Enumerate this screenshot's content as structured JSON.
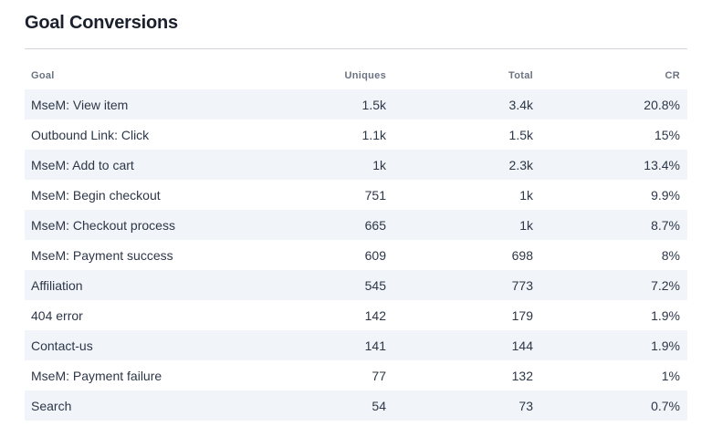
{
  "title": "Goal Conversions",
  "columns": {
    "goal": "Goal",
    "uniques": "Uniques",
    "total": "Total",
    "cr": "CR"
  },
  "rows": [
    {
      "goal": "MseM: View item",
      "uniques": "1.5k",
      "total": "3.4k",
      "cr": "20.8%"
    },
    {
      "goal": "Outbound Link: Click",
      "uniques": "1.1k",
      "total": "1.5k",
      "cr": "15%"
    },
    {
      "goal": "MseM: Add to cart",
      "uniques": "1k",
      "total": "2.3k",
      "cr": "13.4%"
    },
    {
      "goal": "MseM: Begin checkout",
      "uniques": "751",
      "total": "1k",
      "cr": "9.9%"
    },
    {
      "goal": "MseM: Checkout process",
      "uniques": "665",
      "total": "1k",
      "cr": "8.7%"
    },
    {
      "goal": "MseM: Payment success",
      "uniques": "609",
      "total": "698",
      "cr": "8%"
    },
    {
      "goal": "Affiliation",
      "uniques": "545",
      "total": "773",
      "cr": "7.2%"
    },
    {
      "goal": "404 error",
      "uniques": "142",
      "total": "179",
      "cr": "1.9%"
    },
    {
      "goal": "Contact-us",
      "uniques": "141",
      "total": "144",
      "cr": "1.9%"
    },
    {
      "goal": "MseM: Payment failure",
      "uniques": "77",
      "total": "132",
      "cr": "1%"
    },
    {
      "goal": "Search",
      "uniques": "54",
      "total": "73",
      "cr": "0.7%"
    }
  ]
}
